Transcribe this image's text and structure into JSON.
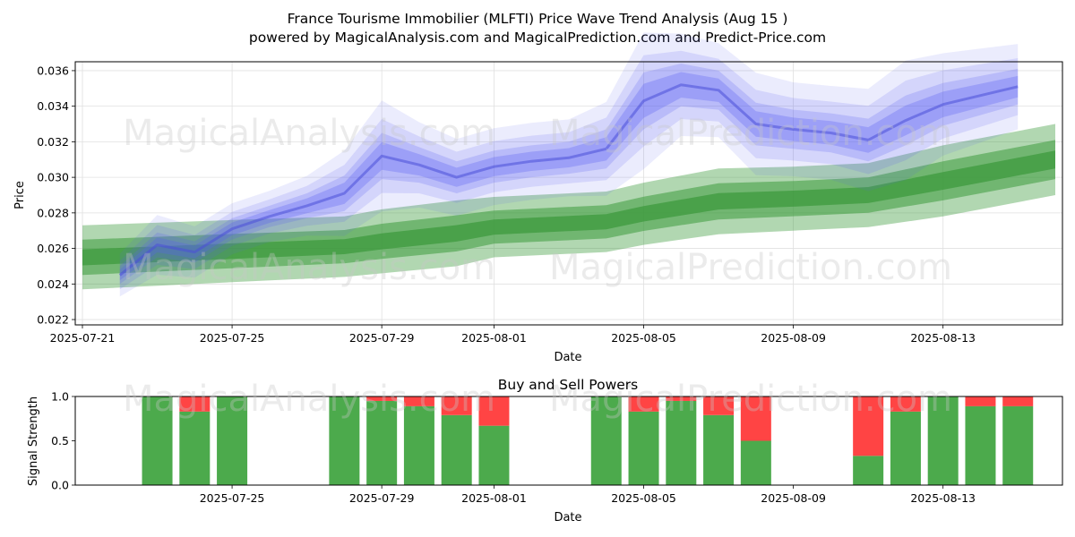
{
  "figure": {
    "title_line1": "France Tourisme Immobilier (MLFTI) Price Wave Trend Analysis (Aug 15 )",
    "title_line2": "powered by MagicalAnalysis.com and MagicalPrediction.com and Predict-Price.com",
    "watermarks": [
      "MagicalAnalysis.com",
      "MagicalPrediction.com"
    ]
  },
  "chart_data": [
    {
      "type": "area",
      "xlabel": "Date",
      "ylabel": "Price",
      "ylim": [
        0.0217,
        0.0365
      ],
      "xlim": [
        "2025-07-21",
        "2025-08-16"
      ],
      "xticks": [
        "2025-07-21",
        "2025-07-25",
        "2025-07-29",
        "2025-08-01",
        "2025-08-05",
        "2025-08-09",
        "2025-08-13"
      ],
      "yticks": [
        0.022,
        0.024,
        0.026,
        0.028,
        0.03,
        0.032,
        0.034,
        0.036
      ],
      "grid": true,
      "colors": {
        "price_wave": "#5b5ff2",
        "trend_band": "#3d9a3d"
      },
      "series": [
        {
          "kind": "price_wave",
          "x": [
            "2025-07-22",
            "2025-07-23",
            "2025-07-24",
            "2025-07-25",
            "2025-07-26",
            "2025-07-27",
            "2025-07-28",
            "2025-07-29",
            "2025-07-30",
            "2025-07-31",
            "2025-08-01",
            "2025-08-02",
            "2025-08-03",
            "2025-08-04",
            "2025-08-05",
            "2025-08-06",
            "2025-08-07",
            "2025-08-08",
            "2025-08-09",
            "2025-08-10",
            "2025-08-11",
            "2025-08-12",
            "2025-08-13",
            "2025-08-14",
            "2025-08-15"
          ],
          "values": [
            0.0245,
            0.0262,
            0.0258,
            0.0271,
            0.0278,
            0.0284,
            0.0291,
            0.0312,
            0.0307,
            0.03,
            0.0306,
            0.0309,
            0.0311,
            0.0316,
            0.0343,
            0.0352,
            0.0349,
            0.033,
            0.0327,
            0.0325,
            0.0321,
            0.0332,
            0.0341,
            0.0346,
            0.0351
          ],
          "spread": [
            0.0005,
            0.0007,
            0.0006,
            0.0006,
            0.0006,
            0.0007,
            0.001,
            0.0013,
            0.001,
            0.0009,
            0.0009,
            0.0009,
            0.0009,
            0.0011,
            0.0016,
            0.0012,
            0.0011,
            0.0012,
            0.0011,
            0.0011,
            0.0012,
            0.0014,
            0.0012,
            0.0011,
            0.001
          ]
        },
        {
          "kind": "trend_band",
          "x": [
            "2025-07-21",
            "2025-07-25",
            "2025-07-28",
            "2025-07-29",
            "2025-07-31",
            "2025-08-01",
            "2025-08-04",
            "2025-08-05",
            "2025-08-07",
            "2025-08-09",
            "2025-08-11",
            "2025-08-12",
            "2025-08-13",
            "2025-08-14",
            "2025-08-16"
          ],
          "upper": [
            0.0273,
            0.0276,
            0.0278,
            0.0282,
            0.0287,
            0.0289,
            0.0292,
            0.0297,
            0.0305,
            0.0306,
            0.0308,
            0.0313,
            0.0318,
            0.0322,
            0.033
          ],
          "lower": [
            0.0237,
            0.0241,
            0.0244,
            0.0246,
            0.025,
            0.0255,
            0.0258,
            0.0262,
            0.0268,
            0.027,
            0.0272,
            0.0275,
            0.0278,
            0.0282,
            0.029
          ]
        }
      ]
    },
    {
      "type": "bar",
      "title": "Buy and Sell Powers",
      "xlabel": "Date",
      "ylabel": "Signal Strength",
      "ylim": [
        0,
        1
      ],
      "yticks": [
        "0.0",
        "0.5",
        "1.0"
      ],
      "xticks": [
        "2025-07-25",
        "2025-07-29",
        "2025-08-01",
        "2025-08-05",
        "2025-08-09",
        "2025-08-13"
      ],
      "colors": {
        "buy": "#4caa4c",
        "sell": "#ff4444"
      },
      "categories": [
        "2025-07-23",
        "2025-07-24",
        "2025-07-25",
        "2025-07-28",
        "2025-07-29",
        "2025-07-30",
        "2025-07-31",
        "2025-08-01",
        "2025-08-04",
        "2025-08-05",
        "2025-08-06",
        "2025-08-07",
        "2025-08-08",
        "2025-08-11",
        "2025-08-12",
        "2025-08-13",
        "2025-08-14",
        "2025-08-15"
      ],
      "series": [
        {
          "name": "buy",
          "values": [
            1.0,
            0.83,
            1.0,
            1.0,
            0.95,
            0.89,
            0.79,
            0.67,
            1.0,
            0.83,
            0.95,
            0.79,
            0.5,
            0.33,
            0.83,
            1.0,
            0.89,
            0.89
          ]
        },
        {
          "name": "sell",
          "values": [
            0.0,
            0.17,
            0.0,
            0.0,
            0.05,
            0.11,
            0.21,
            0.33,
            0.0,
            0.17,
            0.05,
            0.21,
            0.5,
            0.67,
            0.17,
            0.0,
            0.11,
            0.11
          ]
        }
      ]
    }
  ]
}
